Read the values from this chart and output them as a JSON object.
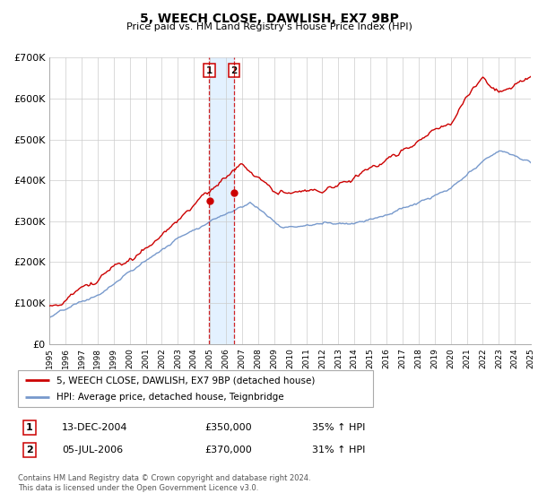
{
  "title": "5, WEECH CLOSE, DAWLISH, EX7 9BP",
  "subtitle": "Price paid vs. HM Land Registry's House Price Index (HPI)",
  "legend_label_red": "5, WEECH CLOSE, DAWLISH, EX7 9BP (detached house)",
  "legend_label_blue": "HPI: Average price, detached house, Teignbridge",
  "transaction1_date": "13-DEC-2004",
  "transaction1_price": "£350,000",
  "transaction1_hpi": "35% ↑ HPI",
  "transaction2_date": "05-JUL-2006",
  "transaction2_price": "£370,000",
  "transaction2_hpi": "31% ↑ HPI",
  "footer1": "Contains HM Land Registry data © Crown copyright and database right 2024.",
  "footer2": "This data is licensed under the Open Government Licence v3.0.",
  "ylim": [
    0,
    700000
  ],
  "yticks": [
    0,
    100000,
    200000,
    300000,
    400000,
    500000,
    600000,
    700000
  ],
  "ytick_labels": [
    "£0",
    "£100K",
    "£200K",
    "£300K",
    "£400K",
    "£500K",
    "£600K",
    "£700K"
  ],
  "red_color": "#cc0000",
  "blue_color": "#7799cc",
  "shade_color": "#ddeeff",
  "transaction1_x": 2004.96,
  "transaction1_y": 350000,
  "transaction2_x": 2006.51,
  "transaction2_y": 370000,
  "grid_color": "#cccccc",
  "xmin": 1995,
  "xmax": 2025
}
